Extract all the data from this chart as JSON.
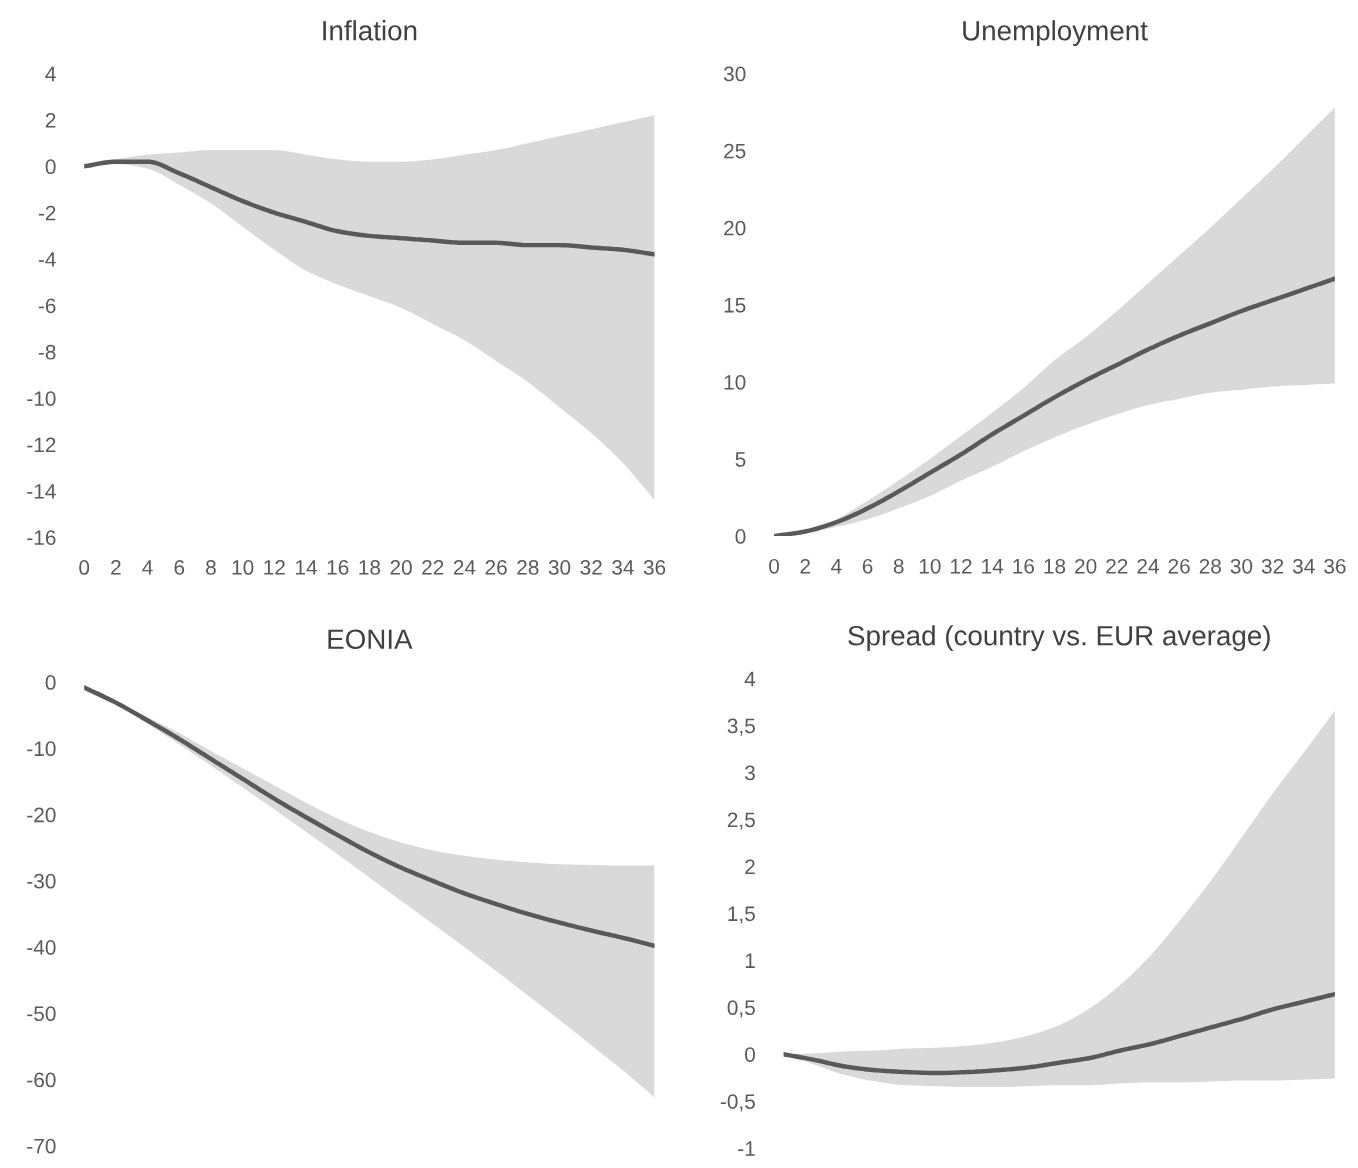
{
  "chart_data": [
    {
      "type": "line",
      "title": "Inflation",
      "x": [
        0,
        2,
        4,
        6,
        8,
        10,
        12,
        14,
        16,
        18,
        20,
        22,
        24,
        26,
        28,
        30,
        32,
        34,
        36
      ],
      "xlim": [
        0,
        36
      ],
      "xticks": [
        0,
        2,
        4,
        6,
        8,
        10,
        12,
        14,
        16,
        18,
        20,
        22,
        24,
        26,
        28,
        30,
        32,
        34,
        36
      ],
      "ylim": [
        -16,
        4
      ],
      "yticks": [
        -16,
        -14,
        -12,
        -10,
        -8,
        -6,
        -4,
        -2,
        0,
        2,
        4
      ],
      "series": [
        {
          "color": "#595959",
          "values": [
            0,
            0.2,
            0.2,
            -0.3,
            -0.9,
            -1.5,
            -2.0,
            -2.4,
            -2.8,
            -3.0,
            -3.1,
            -3.2,
            -3.3,
            -3.3,
            -3.4,
            -3.4,
            -3.5,
            -3.6,
            -3.8
          ],
          "upper": [
            0,
            0.3,
            0.5,
            0.6,
            0.7,
            0.7,
            0.7,
            0.5,
            0.3,
            0.2,
            0.2,
            0.3,
            0.5,
            0.7,
            1.0,
            1.3,
            1.6,
            1.9,
            2.2
          ],
          "lower": [
            0,
            0.1,
            -0.1,
            -0.8,
            -1.6,
            -2.6,
            -3.6,
            -4.5,
            -5.1,
            -5.6,
            -6.1,
            -6.8,
            -7.5,
            -8.4,
            -9.3,
            -10.4,
            -11.5,
            -12.8,
            -14.4
          ]
        }
      ]
    },
    {
      "type": "line",
      "title": "Unemployment",
      "x": [
        0,
        2,
        4,
        6,
        8,
        10,
        12,
        14,
        16,
        18,
        20,
        22,
        24,
        26,
        28,
        30,
        32,
        34,
        36
      ],
      "xlim": [
        0,
        36
      ],
      "xticks": [
        0,
        2,
        4,
        6,
        8,
        10,
        12,
        14,
        16,
        18,
        20,
        22,
        24,
        26,
        28,
        30,
        32,
        34,
        36
      ],
      "ylim": [
        0,
        30
      ],
      "yticks": [
        0,
        5,
        10,
        15,
        20,
        25,
        30
      ],
      "series": [
        {
          "color": "#595959",
          "values": [
            0,
            0.3,
            0.9,
            1.8,
            2.9,
            4.1,
            5.3,
            6.6,
            7.8,
            9.0,
            10.1,
            11.1,
            12.1,
            13.0,
            13.8,
            14.6,
            15.3,
            16.0,
            16.7
          ],
          "upper": [
            0,
            0.3,
            1.1,
            2.3,
            3.6,
            5.0,
            6.5,
            8.0,
            9.6,
            11.4,
            12.9,
            14.6,
            16.4,
            18.2,
            20.0,
            21.9,
            23.8,
            25.8,
            27.8
          ],
          "lower": [
            0,
            0.2,
            0.6,
            1.1,
            1.8,
            2.6,
            3.6,
            4.5,
            5.5,
            6.4,
            7.2,
            7.9,
            8.5,
            8.9,
            9.3,
            9.5,
            9.7,
            9.8,
            9.9
          ]
        }
      ]
    },
    {
      "type": "line",
      "title": "EONIA",
      "x": [
        0,
        2,
        4,
        6,
        8,
        10,
        12,
        14,
        16,
        18,
        20,
        22,
        24,
        26,
        28,
        30,
        32,
        34,
        36
      ],
      "xlim": [
        0,
        36
      ],
      "ylim": [
        -70,
        0
      ],
      "yticks": [
        -70,
        -60,
        -50,
        -40,
        -30,
        -20,
        -10,
        0
      ],
      "tick_labels": "y",
      "series": [
        {
          "color": "#595959",
          "values": [
            -0.8,
            -3.1,
            -5.8,
            -8.6,
            -11.6,
            -14.6,
            -17.6,
            -20.4,
            -23.1,
            -25.7,
            -28.0,
            -30.0,
            -31.9,
            -33.5,
            -35.0,
            -36.3,
            -37.5,
            -38.6,
            -39.8
          ],
          "upper": [
            -0.8,
            -2.9,
            -5.3,
            -7.7,
            -10.4,
            -13.0,
            -15.6,
            -18.2,
            -20.6,
            -22.6,
            -24.2,
            -25.4,
            -26.2,
            -26.8,
            -27.2,
            -27.5,
            -27.6,
            -27.7,
            -27.7
          ],
          "lower": [
            -0.8,
            -3.3,
            -6.3,
            -9.4,
            -12.6,
            -15.9,
            -19.2,
            -22.6,
            -26.0,
            -29.5,
            -33.0,
            -36.5,
            -40.0,
            -43.6,
            -47.3,
            -51.0,
            -54.8,
            -58.6,
            -62.7
          ]
        }
      ]
    },
    {
      "type": "line",
      "title": "Spread (country vs. EUR average)",
      "categories": [
        null,
        null,
        null,
        null,
        null,
        null,
        null,
        null,
        null,
        null,
        null,
        null,
        null,
        null,
        null,
        null,
        null,
        null,
        null
      ],
      "ylim": [
        -1,
        4
      ],
      "yticks": [
        -1,
        {
          "value": -0.5,
          "label": "-0,5"
        },
        0,
        {
          "value": 0.5,
          "label": "0,5"
        },
        1,
        {
          "value": 1.5,
          "label": "1,5"
        },
        2,
        {
          "value": 2.5,
          "label": "2,5"
        },
        3,
        {
          "value": 3.5,
          "label": "3,5"
        },
        4
      ],
      "tick_labels": "y",
      "series": [
        {
          "color": "#595959",
          "values": [
            0,
            -0.06,
            -0.13,
            -0.17,
            -0.19,
            -0.2,
            -0.19,
            -0.17,
            -0.14,
            -0.09,
            -0.04,
            0.04,
            0.11,
            0.2,
            0.29,
            0.38,
            0.48,
            0.56,
            0.64
          ],
          "upper": [
            0,
            0.01,
            0.03,
            0.04,
            0.06,
            0.07,
            0.09,
            0.13,
            0.2,
            0.31,
            0.49,
            0.74,
            1.06,
            1.45,
            1.87,
            2.33,
            2.79,
            3.22,
            3.66
          ],
          "lower": [
            0,
            -0.11,
            -0.22,
            -0.29,
            -0.33,
            -0.34,
            -0.35,
            -0.35,
            -0.34,
            -0.33,
            -0.33,
            -0.31,
            -0.3,
            -0.3,
            -0.29,
            -0.28,
            -0.28,
            -0.27,
            -0.26
          ]
        }
      ]
    }
  ]
}
